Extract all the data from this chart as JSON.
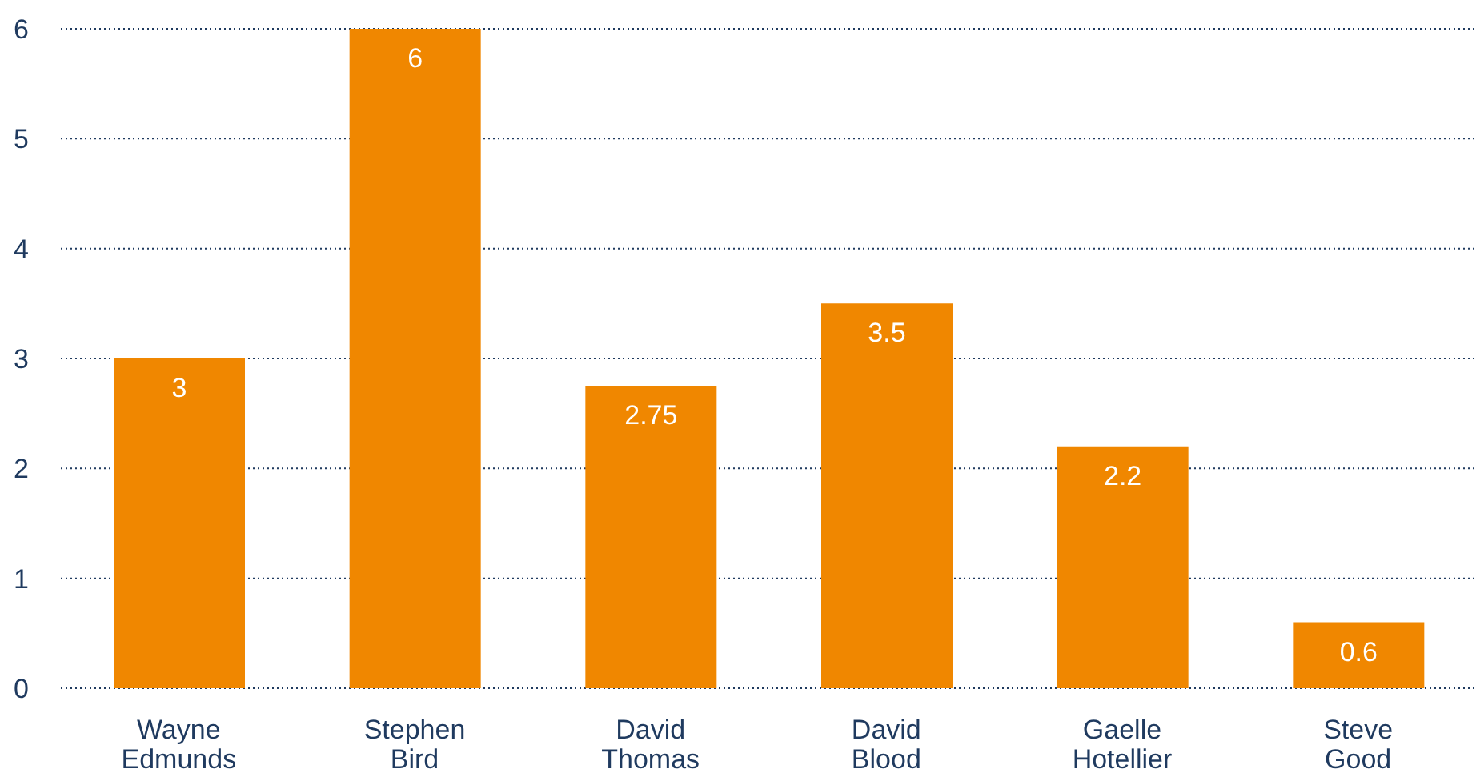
{
  "chart_data": {
    "type": "bar",
    "categories": [
      "Wayne Edmunds",
      "Stephen Bird",
      "David Thomas",
      "David Blood",
      "Gaelle Hotellier",
      "Steve Good"
    ],
    "values": [
      3,
      6,
      2.75,
      3.5,
      2.2,
      0.6
    ],
    "color": "#f08700",
    "ylim": [
      0,
      6
    ],
    "yticks": [
      0,
      1,
      2,
      3,
      4,
      5,
      6
    ],
    "grid": "y",
    "data_labels": true
  }
}
